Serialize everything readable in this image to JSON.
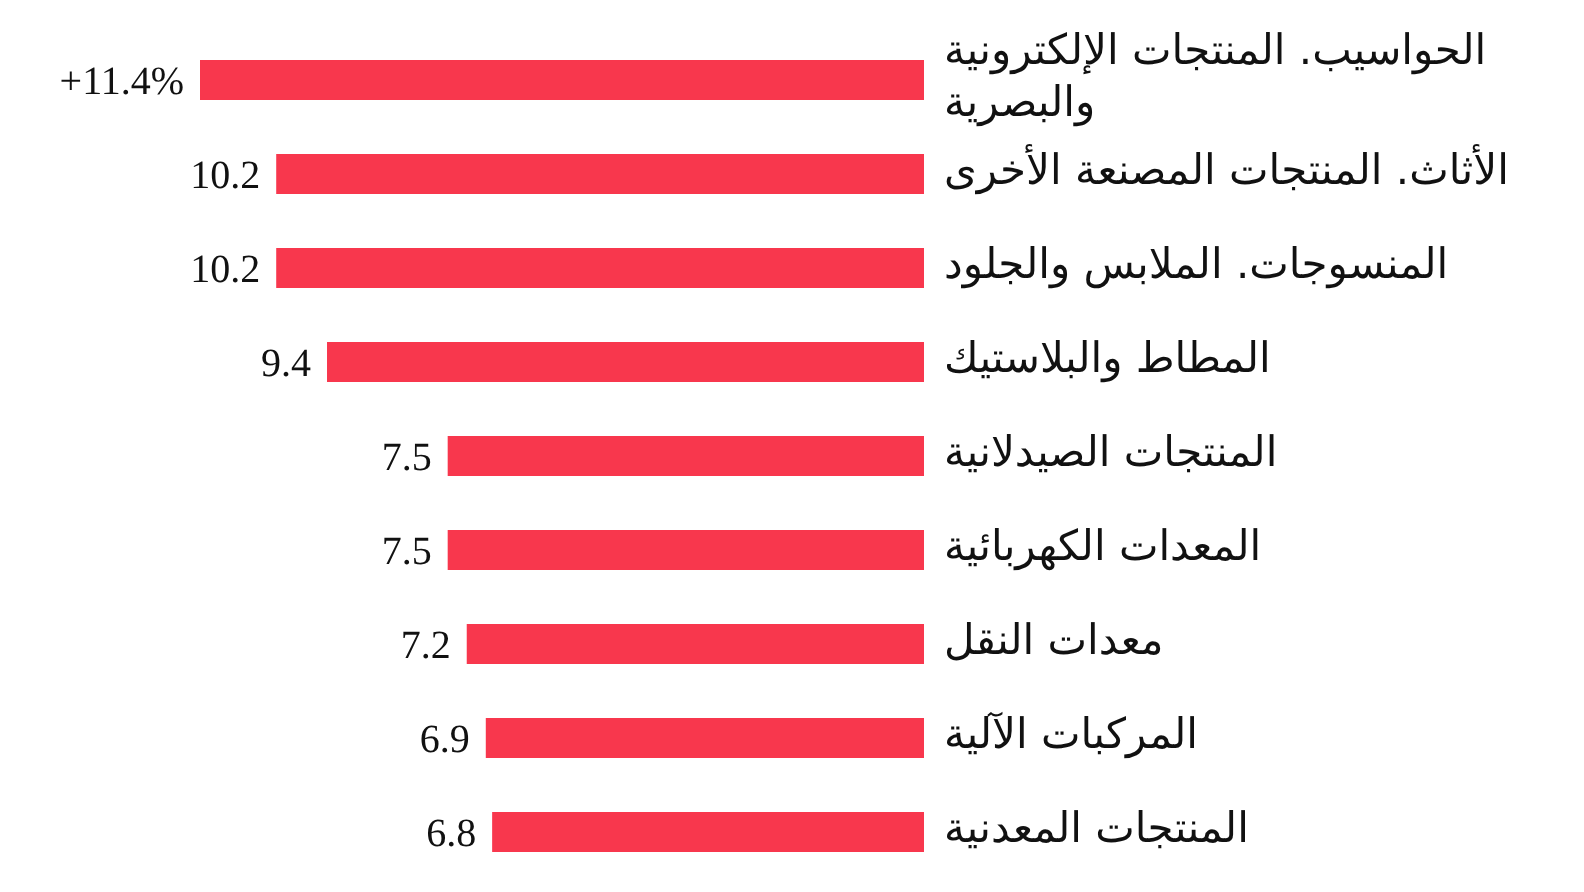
{
  "chart_data": {
    "type": "bar",
    "orientation": "horizontal",
    "categories": [
      "الحواسيب. المنتجات الإلكترونية والبصرية",
      "الأثاث. المنتجات المصنعة الأخرى",
      "المنسوجات. الملابس والجلود",
      "المطاط والبلاستيك",
      "المنتجات الصيدلانية",
      "المعدات الكهربائية",
      "معدات النقل",
      "المركبات الآلية",
      "المنتجات المعدنية"
    ],
    "values": [
      11.4,
      10.2,
      10.2,
      9.4,
      7.5,
      7.5,
      7.2,
      6.9,
      6.8
    ],
    "value_labels": [
      "+11.4%",
      "10.2",
      "10.2",
      "9.4",
      "7.5",
      "7.5",
      "7.2",
      "6.9",
      "6.8"
    ],
    "color": "#f8374d"
  }
}
